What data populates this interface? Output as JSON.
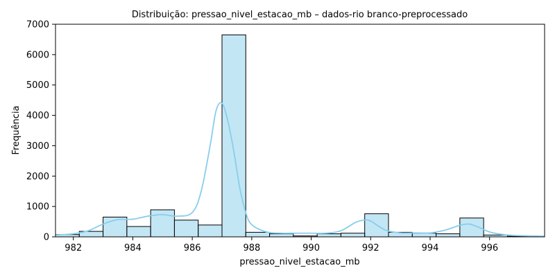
{
  "chart_data": {
    "type": "bar",
    "title": "Distribuição: pressao_nivel_estacao_mb – dados-rio branco-preprocessado",
    "xlabel": "pressao_nivel_estacao_mb",
    "ylabel": "Frequência",
    "xlim": [
      981.4,
      997.85
    ],
    "ylim": [
      0,
      7000
    ],
    "xticks": [
      982,
      984,
      986,
      988,
      990,
      992,
      994,
      996
    ],
    "yticks": [
      0,
      1000,
      2000,
      3000,
      4000,
      5000,
      6000,
      7000
    ],
    "grid": false,
    "bar_color": "#87ceeb",
    "bar_edge_color": "#000000",
    "kde_color": "#87ceeb",
    "bins": [
      {
        "x0": 981.4,
        "x1": 982.2,
        "count": 75
      },
      {
        "x0": 982.2,
        "x1": 983.0,
        "count": 180
      },
      {
        "x0": 983.0,
        "x1": 983.8,
        "count": 650
      },
      {
        "x0": 983.8,
        "x1": 984.6,
        "count": 340
      },
      {
        "x0": 984.6,
        "x1": 985.4,
        "count": 890
      },
      {
        "x0": 985.4,
        "x1": 986.2,
        "count": 550
      },
      {
        "x0": 986.2,
        "x1": 987.0,
        "count": 390
      },
      {
        "x0": 987.0,
        "x1": 987.8,
        "count": 6650
      },
      {
        "x0": 987.8,
        "x1": 988.6,
        "count": 150
      },
      {
        "x0": 988.6,
        "x1": 989.4,
        "count": 100
      },
      {
        "x0": 989.4,
        "x1": 990.2,
        "count": 30
      },
      {
        "x0": 990.2,
        "x1": 991.0,
        "count": 100
      },
      {
        "x0": 991.0,
        "x1": 991.8,
        "count": 120
      },
      {
        "x0": 991.8,
        "x1": 992.6,
        "count": 760
      },
      {
        "x0": 992.6,
        "x1": 993.4,
        "count": 150
      },
      {
        "x0": 993.4,
        "x1": 994.2,
        "count": 120
      },
      {
        "x0": 994.2,
        "x1": 995.0,
        "count": 100
      },
      {
        "x0": 995.0,
        "x1": 995.8,
        "count": 620
      },
      {
        "x0": 995.8,
        "x1": 996.6,
        "count": 60
      },
      {
        "x0": 996.6,
        "x1": 997.4,
        "count": 20
      },
      {
        "x0": 997.4,
        "x1": 997.85,
        "count": 10
      }
    ],
    "kde": {
      "x": [
        981.4,
        982.0,
        982.5,
        983.0,
        983.5,
        984.0,
        984.5,
        985.0,
        985.5,
        986.0,
        986.3,
        986.6,
        986.8,
        987.0,
        987.2,
        987.4,
        987.6,
        987.8,
        988.0,
        988.5,
        989.0,
        989.5,
        990.0,
        990.5,
        991.0,
        991.5,
        991.8,
        992.0,
        992.5,
        993.0,
        993.5,
        994.0,
        994.5,
        995.0,
        995.3,
        995.6,
        996.0,
        996.5,
        997.0,
        997.85
      ],
      "y": [
        60,
        100,
        200,
        420,
        570,
        580,
        680,
        730,
        680,
        800,
        1500,
        3000,
        4150,
        4400,
        3800,
        2800,
        1600,
        800,
        400,
        160,
        120,
        120,
        120,
        120,
        200,
        480,
        550,
        520,
        220,
        130,
        130,
        130,
        220,
        380,
        420,
        330,
        160,
        70,
        40,
        20
      ]
    }
  }
}
